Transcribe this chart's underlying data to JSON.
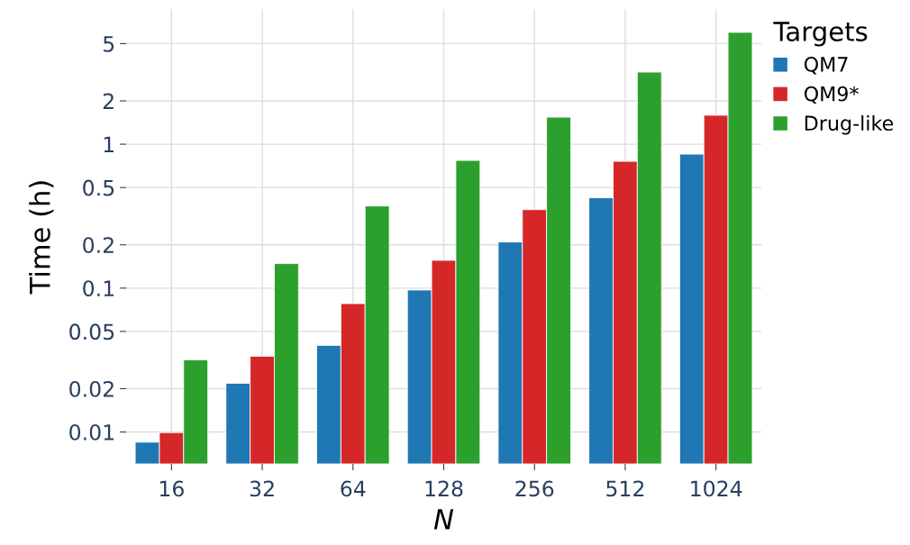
{
  "chart_data": {
    "type": "bar",
    "xlabel": "N",
    "ylabel": "Time (h)",
    "legend_title": "Targets",
    "categories": [
      "16",
      "32",
      "64",
      "128",
      "256",
      "512",
      "1024"
    ],
    "series": [
      {
        "name": "QM7",
        "color": "#1f77b4",
        "values": [
          0.0085,
          0.0218,
          0.04,
          0.097,
          0.209,
          0.424,
          0.853
        ]
      },
      {
        "name": "QM9*",
        "color": "#d62728",
        "values": [
          0.0099,
          0.0336,
          0.078,
          0.156,
          0.351,
          0.76,
          1.59
        ]
      },
      {
        "name": "Drug-like",
        "color": "#2ca02c",
        "values": [
          0.0317,
          0.148,
          0.372,
          0.771,
          1.54,
          3.17,
          5.99
        ]
      }
    ],
    "log": "y",
    "ylim": [
      0.006,
      8.7
    ],
    "yticks": [
      0.01,
      0.02,
      0.05,
      0.1,
      0.2,
      0.5,
      1,
      2,
      5
    ],
    "grid": true,
    "legend": "top right"
  }
}
